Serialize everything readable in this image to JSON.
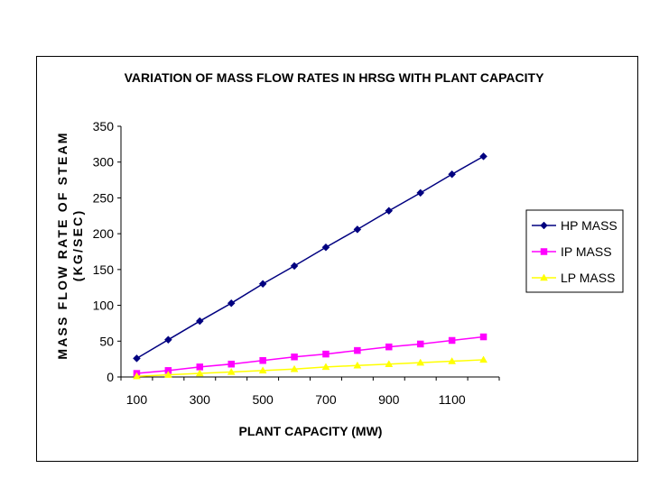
{
  "chart_data": {
    "type": "line",
    "title": "VARIATION OF MASS FLOW RATES IN HRSG WITH PLANT CAPACITY",
    "xlabel": "PLANT CAPACITY (MW)",
    "ylabel_line1": "MASS FLOW RATE OF STEAM",
    "ylabel_line2": "(KG/SEC)",
    "x": [
      100,
      200,
      300,
      400,
      500,
      600,
      700,
      800,
      900,
      1000,
      1100,
      1200
    ],
    "x_tick_labels": [
      "100",
      "300",
      "500",
      "700",
      "900",
      "1100"
    ],
    "y_tick_labels": [
      "0",
      "50",
      "100",
      "150",
      "200",
      "250",
      "300",
      "350"
    ],
    "ylim": [
      0,
      350
    ],
    "grid": false,
    "legend_position": "right",
    "series": [
      {
        "name": "HP MASS",
        "color": "#000080",
        "marker": "diamond",
        "values": [
          26,
          52,
          78,
          103,
          130,
          155,
          181,
          206,
          232,
          257,
          283,
          308
        ]
      },
      {
        "name": "IP MASS",
        "color": "#ff00ff",
        "marker": "square",
        "values": [
          5,
          9,
          14,
          18,
          23,
          28,
          32,
          37,
          42,
          46,
          51,
          56
        ]
      },
      {
        "name": "LP MASS",
        "color": "#ffff00",
        "marker": "triangle",
        "values": [
          1,
          3,
          5,
          7,
          9,
          11,
          14,
          16,
          18,
          20,
          22,
          24
        ]
      }
    ]
  }
}
